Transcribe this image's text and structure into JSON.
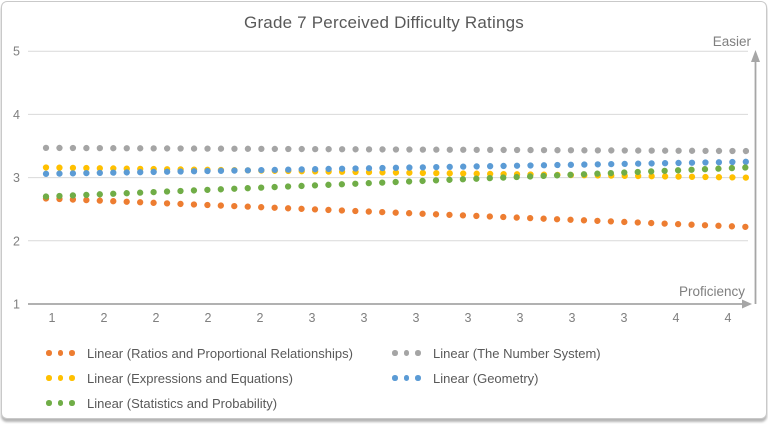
{
  "chart_data": {
    "type": "scatter",
    "subtype": "dotted-linear-trendlines",
    "title": "Grade 7 Perceived Difficulty Ratings",
    "x_axis": {
      "label": "Proficiency",
      "tick_labels": [
        "1",
        "2",
        "2",
        "2",
        "2",
        "3",
        "3",
        "3",
        "3",
        "3",
        "3",
        "3",
        "4",
        "4"
      ]
    },
    "y_axis": {
      "label": "Easier",
      "ticks": [
        "1",
        "2",
        "3",
        "4",
        "5"
      ],
      "range": [
        1,
        5
      ]
    },
    "grid": "horizontal-only",
    "legend_position": "bottom",
    "axis_color": "#A6A6A6",
    "gridline_color": "#D9D9D9",
    "text_color": "#7F7F7F",
    "title_color": "#595959",
    "series": [
      {
        "name": "Linear (Ratios and Proportional Relationships)",
        "color": "#ED7D31",
        "trend": {
          "start": 2.67,
          "end": 2.22
        }
      },
      {
        "name": "Linear (The Number System)",
        "color": "#A5A5A5",
        "trend": {
          "start": 3.47,
          "end": 3.42
        }
      },
      {
        "name": "Linear (Expressions and Equations)",
        "color": "#FFC000",
        "trend": {
          "start": 3.16,
          "end": 3.0
        }
      },
      {
        "name": "Linear (Geometry)",
        "color": "#5B9BD5",
        "trend": {
          "start": 3.06,
          "end": 3.25
        }
      },
      {
        "name": "Linear (Statistics and Probability)",
        "color": "#70AD47",
        "trend": {
          "start": 2.7,
          "end": 3.16
        }
      }
    ]
  }
}
